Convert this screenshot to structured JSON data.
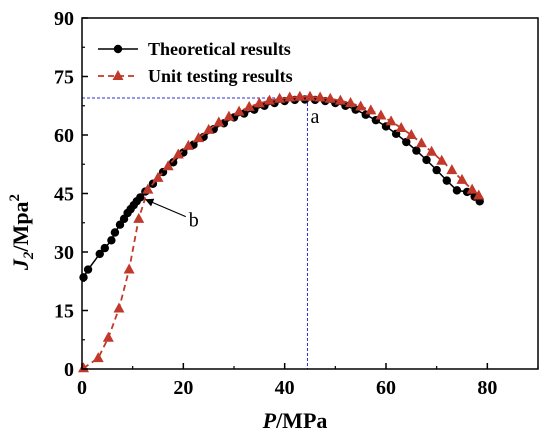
{
  "chart_data": {
    "type": "line",
    "xlabel": {
      "italic": "P",
      "unit": "/MPa"
    },
    "ylabel": {
      "italic": "J",
      "sub": "2",
      "unit": "/Mpa",
      "sup": "2"
    },
    "xlim": [
      0,
      90
    ],
    "ylim": [
      0,
      90
    ],
    "xticks": [
      0,
      20,
      40,
      60,
      80
    ],
    "yticks": [
      0,
      15,
      30,
      45,
      60,
      75,
      90
    ],
    "legend_position": "top-left",
    "series": [
      {
        "name": "Theoretical results",
        "color": "#000000",
        "line": "solid",
        "marker": "circle",
        "x": [
          0.3,
          1.2,
          3.5,
          4.5,
          5.8,
          6.5,
          7.5,
          8.3,
          9.0,
          9.6,
          10.2,
          10.8,
          11.5,
          12.5,
          14,
          16,
          18,
          20,
          22,
          24,
          26,
          28,
          30,
          32,
          34,
          36,
          38,
          40,
          42,
          44,
          46,
          48,
          50,
          52,
          54,
          56,
          58,
          60,
          62,
          64,
          66,
          68,
          70,
          72,
          74,
          76,
          77.5,
          78.5
        ],
        "y": [
          23.5,
          25.5,
          29.5,
          31,
          33,
          35,
          37,
          38.5,
          40,
          41,
          42,
          43,
          44,
          45.5,
          47.5,
          50.5,
          53,
          55.5,
          57.5,
          59.5,
          61.5,
          63,
          64.5,
          65.5,
          66.5,
          67.5,
          68.2,
          68.7,
          69,
          69.1,
          69,
          68.7,
          68.2,
          67.5,
          66.5,
          65.2,
          63.8,
          62.2,
          60.3,
          58.2,
          56,
          53.6,
          51,
          48.3,
          45.8,
          45.4,
          44.2,
          43
        ]
      },
      {
        "name": "Unit testing results",
        "color": "#C0392B",
        "line": "dashed",
        "marker": "triangle",
        "x": [
          0.3,
          3.2,
          5.2,
          7.3,
          9.3,
          11.2,
          13,
          15,
          17,
          19,
          21,
          23,
          25,
          27,
          29,
          31,
          33,
          35,
          37,
          39,
          41,
          43,
          45,
          47,
          49,
          51,
          53,
          55,
          57,
          59,
          61,
          63,
          65,
          67,
          69,
          71,
          73,
          75,
          77,
          78.3
        ],
        "y": [
          0.2,
          2.8,
          8,
          15.5,
          25.5,
          38.5,
          46,
          49,
          52,
          55,
          57.2,
          59.2,
          61.3,
          63.2,
          64.7,
          66,
          67.2,
          68.1,
          68.8,
          69.3,
          69.6,
          69.8,
          69.8,
          69.6,
          69.3,
          68.8,
          68.2,
          67.3,
          66.3,
          65,
          63.5,
          61.8,
          60,
          57.9,
          55.7,
          53.4,
          51,
          48.5,
          46,
          44.5
        ]
      }
    ],
    "annotations": [
      {
        "label": "a",
        "x": 44.5,
        "y": 69.5
      },
      {
        "label": "b",
        "x": 11.8,
        "y": 44.2
      }
    ]
  }
}
